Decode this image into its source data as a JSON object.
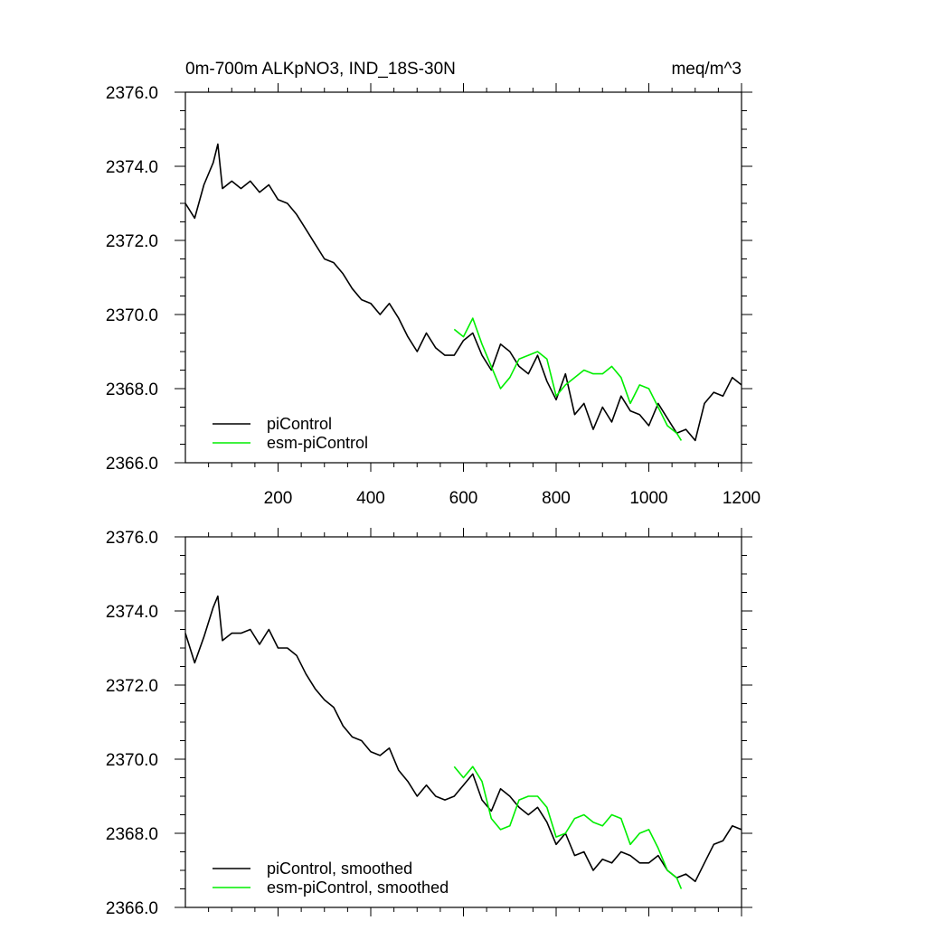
{
  "chart_data": [
    {
      "type": "line",
      "title": "0m-700m ALKpNO3, IND_18S-30N",
      "units": "meq/m^3",
      "xlim": [
        0,
        1200
      ],
      "ylim": [
        2366.0,
        2376.0
      ],
      "xticks": [
        200,
        400,
        600,
        800,
        1000,
        1200
      ],
      "xtick_labels": [
        "200",
        "400",
        "600",
        "800",
        "1000",
        "1200"
      ],
      "yticks": [
        2366.0,
        2368.0,
        2370.0,
        2372.0,
        2374.0,
        2376.0
      ],
      "ytick_labels": [
        "2366.0",
        "2368.0",
        "2370.0",
        "2372.0",
        "2374.0",
        "2376.0"
      ],
      "legend_position": "bottom-left",
      "grid": false,
      "series": [
        {
          "name": "piControl",
          "color": "#000000",
          "x": [
            0,
            20,
            40,
            60,
            70,
            80,
            100,
            120,
            140,
            160,
            180,
            200,
            220,
            240,
            260,
            280,
            300,
            320,
            340,
            360,
            380,
            400,
            420,
            440,
            460,
            480,
            500,
            520,
            540,
            560,
            580,
            600,
            620,
            640,
            660,
            680,
            700,
            720,
            740,
            760,
            780,
            800,
            820,
            840,
            860,
            880,
            900,
            920,
            940,
            960,
            980,
            1000,
            1020,
            1040,
            1060,
            1080,
            1100,
            1120,
            1140,
            1160,
            1180,
            1200
          ],
          "y": [
            2373.0,
            2372.6,
            2373.5,
            2374.1,
            2374.6,
            2373.4,
            2373.6,
            2373.4,
            2373.6,
            2373.3,
            2373.5,
            2373.1,
            2373.0,
            2372.7,
            2372.3,
            2371.9,
            2371.5,
            2371.4,
            2371.1,
            2370.7,
            2370.4,
            2370.3,
            2370.0,
            2370.3,
            2369.9,
            2369.4,
            2369.0,
            2369.5,
            2369.1,
            2368.9,
            2368.9,
            2369.3,
            2369.5,
            2368.9,
            2368.5,
            2369.2,
            2369.0,
            2368.6,
            2368.4,
            2368.9,
            2368.2,
            2367.7,
            2368.4,
            2367.3,
            2367.6,
            2366.9,
            2367.5,
            2367.1,
            2367.8,
            2367.4,
            2367.3,
            2367.0,
            2367.6,
            2367.2,
            2366.8,
            2366.9,
            2366.6,
            2367.6,
            2367.9,
            2367.8,
            2368.3,
            2368.1
          ]
        },
        {
          "name": "esm-piControl",
          "color": "#00ee00",
          "x": [
            580,
            600,
            620,
            640,
            660,
            680,
            700,
            720,
            740,
            760,
            780,
            800,
            820,
            840,
            860,
            880,
            900,
            920,
            940,
            960,
            980,
            1000,
            1020,
            1040,
            1060,
            1070
          ],
          "y": [
            2369.6,
            2369.4,
            2369.9,
            2369.2,
            2368.6,
            2368.0,
            2368.3,
            2368.8,
            2368.9,
            2369.0,
            2368.8,
            2367.8,
            2368.1,
            2368.3,
            2368.5,
            2368.4,
            2368.4,
            2368.6,
            2368.3,
            2367.6,
            2368.1,
            2368.0,
            2367.5,
            2367.0,
            2366.8,
            2366.6
          ]
        }
      ]
    },
    {
      "type": "line",
      "xlim": [
        0,
        1200
      ],
      "ylim": [
        2366.0,
        2376.0
      ],
      "xticks": [
        200,
        400,
        600,
        800,
        1000,
        1200
      ],
      "yticks": [
        2366.0,
        2368.0,
        2370.0,
        2372.0,
        2374.0,
        2376.0
      ],
      "ytick_labels": [
        "2366.0",
        "2368.0",
        "2370.0",
        "2372.0",
        "2374.0",
        "2376.0"
      ],
      "legend_position": "bottom-left",
      "grid": false,
      "series": [
        {
          "name": "piControl, smoothed",
          "color": "#000000",
          "x": [
            0,
            20,
            40,
            60,
            70,
            80,
            100,
            120,
            140,
            160,
            180,
            200,
            220,
            240,
            260,
            280,
            300,
            320,
            340,
            360,
            380,
            400,
            420,
            440,
            460,
            480,
            500,
            520,
            540,
            560,
            580,
            600,
            620,
            640,
            660,
            680,
            700,
            720,
            740,
            760,
            780,
            800,
            820,
            840,
            860,
            880,
            900,
            920,
            940,
            960,
            980,
            1000,
            1020,
            1040,
            1060,
            1080,
            1100,
            1120,
            1140,
            1160,
            1180,
            1200
          ],
          "y": [
            2373.4,
            2372.6,
            2373.3,
            2374.1,
            2374.4,
            2373.2,
            2373.4,
            2373.4,
            2373.5,
            2373.1,
            2373.5,
            2373.0,
            2373.0,
            2372.8,
            2372.3,
            2371.9,
            2371.6,
            2371.4,
            2370.9,
            2370.6,
            2370.5,
            2370.2,
            2370.1,
            2370.3,
            2369.7,
            2369.4,
            2369.0,
            2369.3,
            2369.0,
            2368.9,
            2369.0,
            2369.3,
            2369.6,
            2368.9,
            2368.6,
            2369.2,
            2369.0,
            2368.7,
            2368.5,
            2368.7,
            2368.3,
            2367.7,
            2368.0,
            2367.4,
            2367.5,
            2367.0,
            2367.3,
            2367.2,
            2367.5,
            2367.4,
            2367.2,
            2367.2,
            2367.4,
            2367.0,
            2366.8,
            2366.9,
            2366.7,
            2367.2,
            2367.7,
            2367.8,
            2368.2,
            2368.1
          ]
        },
        {
          "name": "esm-piControl, smoothed",
          "color": "#00ee00",
          "x": [
            580,
            600,
            620,
            640,
            660,
            680,
            700,
            720,
            740,
            760,
            780,
            800,
            820,
            840,
            860,
            880,
            900,
            920,
            940,
            960,
            980,
            1000,
            1020,
            1040,
            1060,
            1070
          ],
          "y": [
            2369.8,
            2369.5,
            2369.8,
            2369.4,
            2368.4,
            2368.1,
            2368.2,
            2368.9,
            2369.0,
            2369.0,
            2368.7,
            2367.9,
            2368.0,
            2368.4,
            2368.5,
            2368.3,
            2368.2,
            2368.5,
            2368.4,
            2367.7,
            2368.0,
            2368.1,
            2367.6,
            2367.0,
            2366.8,
            2366.5
          ]
        }
      ]
    }
  ]
}
